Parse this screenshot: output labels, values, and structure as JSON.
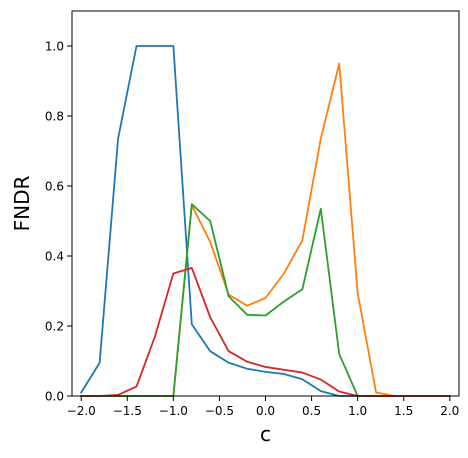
{
  "chart_data": {
    "type": "line",
    "title": "",
    "xlabel": "c",
    "ylabel": "FNDR",
    "xlim": [
      -2.1,
      2.1
    ],
    "ylim": [
      0.0,
      1.1
    ],
    "xticks": [
      -2.0,
      -1.5,
      -1.0,
      -0.5,
      0.0,
      0.5,
      1.0,
      1.5,
      2.0
    ],
    "xtick_labels": [
      "−2.0",
      "−1.5",
      "−1.0",
      "−0.5",
      "0.0",
      "0.5",
      "1.0",
      "1.5",
      "2.0"
    ],
    "yticks": [
      0.0,
      0.2,
      0.4,
      0.6,
      0.8,
      1.0
    ],
    "ytick_labels": [
      "0.0",
      "0.2",
      "0.4",
      "0.6",
      "0.8",
      "1.0"
    ],
    "grid": false,
    "legend": false,
    "x": [
      -2.0,
      -1.8,
      -1.6,
      -1.4,
      -1.2,
      -1.0,
      -0.8,
      -0.6,
      -0.4,
      -0.2,
      0.0,
      0.2,
      0.4,
      0.6,
      0.8,
      1.0,
      1.2,
      1.4,
      1.6,
      1.8,
      2.0
    ],
    "series": [
      {
        "color": "#1f77b4",
        "values": [
          0.01,
          0.095,
          0.735,
          1.0,
          1.0,
          1.0,
          0.205,
          0.128,
          0.095,
          0.078,
          0.069,
          0.063,
          0.048,
          0.014,
          0.0,
          0.0,
          0.0,
          0.0,
          0.0,
          0.0,
          0.0
        ]
      },
      {
        "color": "#ff7f0e",
        "values": [
          0.0,
          0.0,
          0.0,
          0.0,
          0.0,
          0.0,
          0.545,
          0.44,
          0.29,
          0.258,
          0.28,
          0.35,
          0.445,
          0.735,
          0.95,
          0.295,
          0.01,
          0.0,
          0.0,
          0.0,
          0.0
        ]
      },
      {
        "color": "#2ca02c",
        "values": [
          0.0,
          0.0,
          0.0,
          0.0,
          0.0,
          0.0,
          0.548,
          0.5,
          0.285,
          0.232,
          0.23,
          0.27,
          0.305,
          0.535,
          0.12,
          0.0,
          0.0,
          0.0,
          0.0,
          0.0,
          0.0
        ]
      },
      {
        "color": "#d62728",
        "values": [
          0.0,
          0.0,
          0.003,
          0.027,
          0.17,
          0.35,
          0.366,
          0.225,
          0.128,
          0.098,
          0.083,
          0.075,
          0.067,
          0.047,
          0.013,
          0.0,
          0.0,
          0.0,
          0.0,
          0.0,
          0.0
        ]
      }
    ]
  }
}
